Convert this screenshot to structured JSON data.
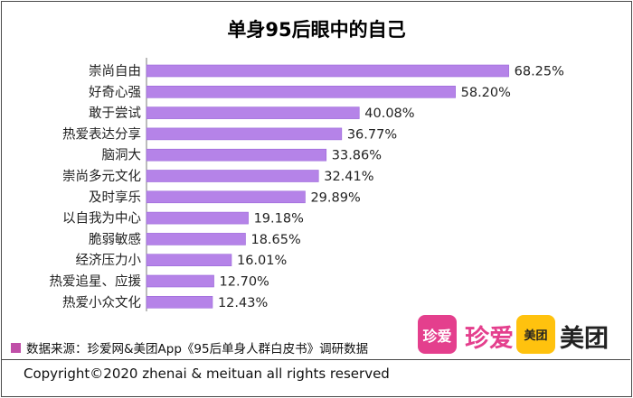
{
  "chart_data": {
    "type": "bar",
    "orientation": "horizontal",
    "title": "单身95后眼中的自己",
    "categories": [
      "崇尚自由",
      "好奇心强",
      "敢于尝试",
      "热爱表达分享",
      "脑洞大",
      "崇尚多元文化",
      "及时享乐",
      "以自我为中心",
      "脆弱敏感",
      "经济压力小",
      "热爱追星、应援",
      "热爱小众文化"
    ],
    "values": [
      68.25,
      58.2,
      40.08,
      36.77,
      33.86,
      32.41,
      29.89,
      19.18,
      18.65,
      16.01,
      12.7,
      12.43
    ],
    "value_labels": [
      "68.25%",
      "58.20%",
      "40.08%",
      "36.77%",
      "33.86%",
      "32.41%",
      "29.89%",
      "19.18%",
      "18.65%",
      "16.01%",
      "12.70%",
      "12.43%"
    ],
    "unit": "%",
    "xlim": [
      0,
      100
    ],
    "grid": false,
    "bar_color": "#b583e8",
    "bar_edge_color": "#9a66d9"
  },
  "legend": {
    "swatch_color": "#c04fa8",
    "text": "数据来源：珍爱网&美团App《95后单身人群白皮书》调研数据"
  },
  "logos": {
    "zhenai_tile": "珍爱",
    "zhenai_word": "珍爱",
    "meituan_tile": "美团",
    "meituan_word": "美团"
  },
  "footer": {
    "copyright": "Copyright©2020 zhenai & meituan all rights reserved"
  }
}
